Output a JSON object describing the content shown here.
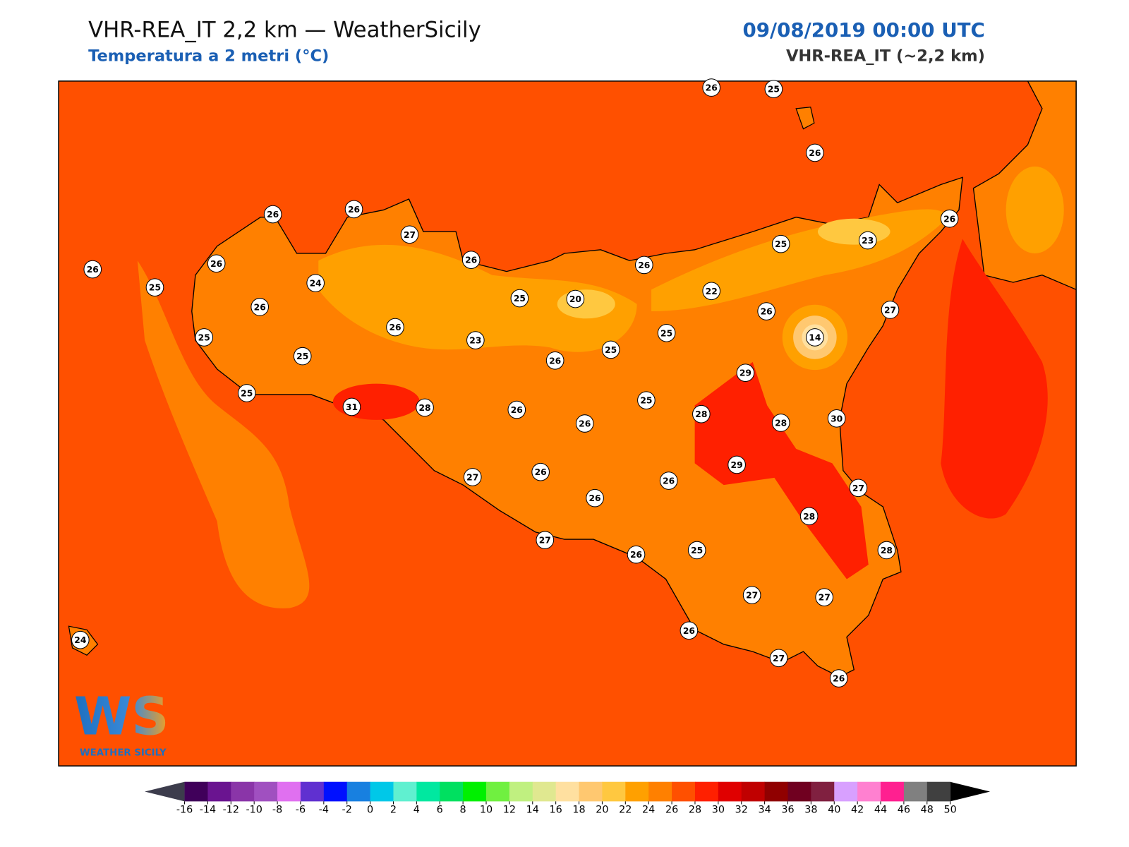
{
  "header": {
    "title": "VHR-REA_IT 2,2 km — WeatherSicily",
    "subtitle": "Temperatura a 2 metri (°C)",
    "datetime": "09/08/2019 00:00 UTC",
    "model": "VHR-REA_IT (~2,2 km)"
  },
  "stations": [
    26,
    25,
    26,
    26,
    25,
    26,
    26,
    26,
    27,
    26,
    24,
    26,
    25,
    25,
    25,
    26,
    23,
    25,
    20,
    26,
    25,
    26,
    26,
    28,
    31,
    26,
    25,
    25,
    22,
    26,
    25,
    23,
    26,
    27,
    14,
    29,
    28,
    28,
    30,
    29,
    26,
    26,
    26,
    27,
    27,
    28,
    28,
    25,
    26,
    27,
    27,
    27,
    26,
    27,
    26,
    24
  ],
  "colorbar": {
    "ticks": [
      -16,
      -14,
      -12,
      -10,
      -8,
      -6,
      -4,
      -2,
      0,
      2,
      4,
      6,
      8,
      10,
      12,
      14,
      16,
      18,
      20,
      22,
      24,
      26,
      28,
      30,
      32,
      34,
      36,
      38,
      40,
      42,
      44,
      46,
      48,
      50
    ],
    "colors": [
      "#40005a",
      "#6a1490",
      "#8a35a8",
      "#a050c0",
      "#e070f0",
      "#6030d0",
      "#0010ff",
      "#1880e0",
      "#00c8e8",
      "#60f0d0",
      "#00e8a0",
      "#00e060",
      "#00f000",
      "#70f040",
      "#c0f080",
      "#e0e890",
      "#ffe0a0",
      "#ffc870",
      "#ffc840",
      "#ffa000",
      "#ff8000",
      "#ff5000",
      "#ff2000",
      "#e00000",
      "#c00000",
      "#900000",
      "#700020",
      "#802040",
      "#d8a0ff",
      "#ff80d0",
      "#ff2090",
      "#808080",
      "#404040"
    ],
    "under_color": "#3c3c4c",
    "over_color": "#000000"
  },
  "logo": {
    "mark": "WS",
    "caption": "WEATHER SICILY"
  }
}
